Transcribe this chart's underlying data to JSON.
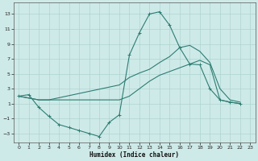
{
  "xlabel": "Humidex (Indice chaleur)",
  "background_color": "#ceeae8",
  "grid_color": "#aed4d1",
  "line_color": "#2d7d73",
  "x_ticks": [
    0,
    1,
    2,
    3,
    4,
    5,
    6,
    7,
    8,
    9,
    10,
    11,
    12,
    13,
    14,
    15,
    16,
    17,
    18,
    19,
    20,
    21,
    22,
    23
  ],
  "y_ticks": [
    -3,
    -1,
    1,
    3,
    5,
    7,
    9,
    11,
    13
  ],
  "ylim": [
    -4.2,
    14.5
  ],
  "xlim": [
    -0.5,
    23.5
  ],
  "line1_x": [
    0,
    1,
    2,
    3,
    4,
    5,
    6,
    7,
    8,
    9,
    10,
    11,
    12,
    13,
    14,
    15,
    16,
    17,
    18,
    19,
    20,
    21,
    22
  ],
  "line1_y": [
    2.0,
    2.2,
    0.5,
    -0.7,
    -1.8,
    -2.2,
    -2.6,
    -3.0,
    -3.4,
    -1.5,
    -0.5,
    7.5,
    10.5,
    13.0,
    13.3,
    11.5,
    8.5,
    6.3,
    6.2,
    3.0,
    1.5,
    1.2,
    1.0
  ],
  "line2_x": [
    0,
    2,
    3,
    10,
    11,
    12,
    13,
    14,
    15,
    16,
    17,
    18,
    19,
    20,
    21,
    22
  ],
  "line2_y": [
    2.0,
    1.5,
    1.5,
    3.5,
    4.5,
    5.1,
    5.6,
    6.5,
    7.3,
    8.5,
    8.8,
    8.0,
    6.5,
    3.0,
    1.5,
    1.2
  ],
  "line3_x": [
    0,
    2,
    3,
    10,
    11,
    12,
    13,
    14,
    15,
    16,
    17,
    18,
    19,
    20,
    21,
    22
  ],
  "line3_y": [
    2.0,
    1.5,
    1.5,
    1.5,
    2.0,
    3.0,
    4.0,
    4.8,
    5.3,
    5.8,
    6.3,
    6.8,
    6.2,
    1.5,
    1.2,
    1.0
  ]
}
